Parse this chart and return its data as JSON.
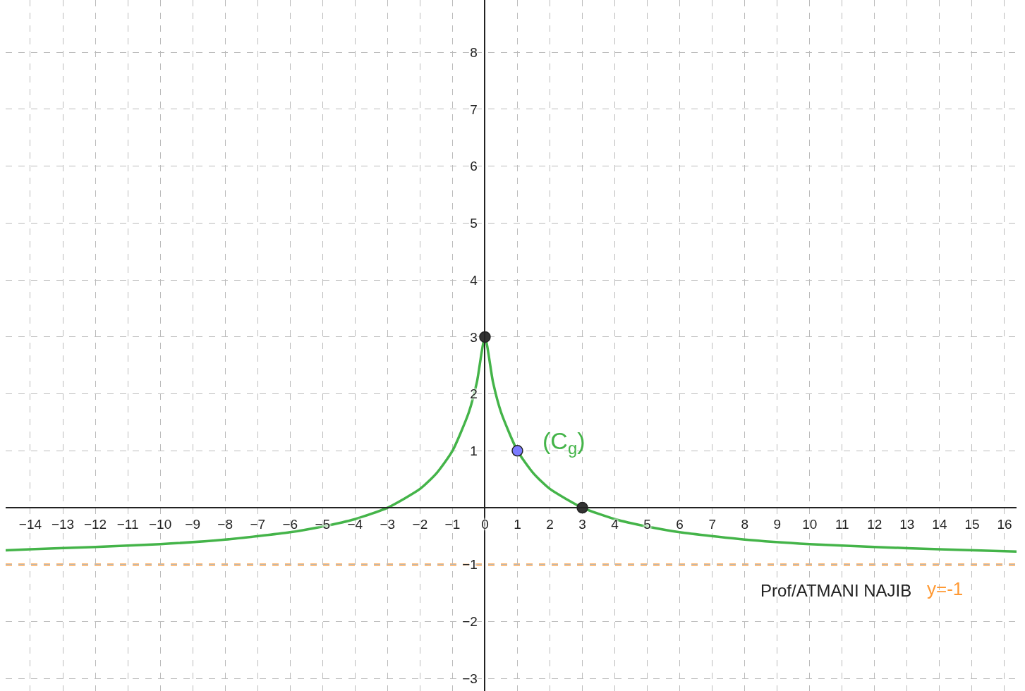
{
  "chart_data": {
    "type": "line",
    "xlim": [
      -14.76,
      16.37
    ],
    "ylim": [
      -3.22,
      8.92
    ],
    "xticks": [
      -14,
      -13,
      -12,
      -11,
      -10,
      -9,
      -8,
      -7,
      -6,
      -5,
      -4,
      -3,
      -2,
      {
        "value": -1,
        "label": "−1"
      },
      {
        "value": 0,
        "label": "0"
      },
      1,
      2,
      3,
      4,
      5,
      6,
      7,
      8,
      9,
      10,
      11,
      12,
      13,
      14,
      15,
      16
    ],
    "yticks": [
      {
        "value": -3,
        "label": "−3"
      },
      {
        "value": -2,
        "label": "−2"
      },
      {
        "value": -1,
        "label": "−1"
      },
      1,
      2,
      3,
      4,
      5,
      6,
      7,
      8
    ],
    "grid": true,
    "legend": false,
    "series": [
      {
        "color": "#44b449",
        "x": [
          -14.76,
          -14,
          -12,
          -10,
          -8,
          -6,
          -5,
          -4,
          -3,
          -2,
          -1.5,
          -1,
          -0.5,
          -0.25,
          0,
          0.25,
          0.5,
          1,
          1.5,
          2,
          3,
          4,
          5,
          6,
          8,
          10,
          12,
          14,
          16.37
        ],
        "values": [
          -0.75,
          -0.73,
          -0.69,
          -0.64,
          -0.56,
          -0.43,
          -0.33,
          -0.2,
          0,
          0.33,
          0.6,
          1,
          1.67,
          2.2,
          3,
          2.2,
          1.67,
          1,
          0.6,
          0.33,
          0,
          -0.2,
          -0.33,
          -0.43,
          -0.56,
          -0.64,
          -0.69,
          -0.73,
          -0.77
        ]
      },
      {
        "type": "scatter",
        "marker": "circle",
        "x": [
          0,
          1,
          3
        ],
        "values": [
          3,
          1,
          0
        ],
        "colors": [
          "#333333",
          "#7b7bff",
          "#333333"
        ]
      }
    ],
    "ref_lines": [
      {
        "axis": "y",
        "value": -1,
        "label": "y=-1",
        "color": "#ff9933",
        "line_style": "dashed"
      }
    ],
    "annotations": [
      "(C$_{g}$)",
      "Prof/ATMANI NAJIB"
    ]
  }
}
